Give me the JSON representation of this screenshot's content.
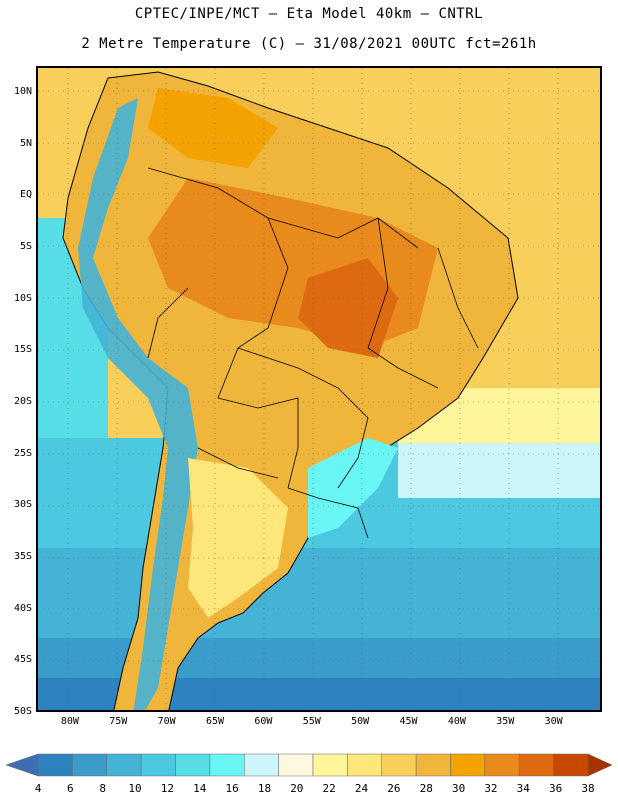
{
  "header": {
    "line1": "CPTEC/INPE/MCT –  Eta Model 40km – CNTRL",
    "line2": "2 Metre Temperature (C) – 31/08/2021 00UTC fct=261h"
  },
  "map": {
    "lat_labels": [
      "10N",
      "5N",
      "EQ",
      "5S",
      "10S",
      "15S",
      "20S",
      "25S",
      "30S",
      "35S",
      "40S",
      "45S",
      "50S"
    ],
    "lat_values": [
      10,
      5,
      0,
      -5,
      -10,
      -15,
      -20,
      -25,
      -30,
      -35,
      -40,
      -45,
      -50
    ],
    "lon_labels": [
      "80W",
      "75W",
      "70W",
      "65W",
      "60W",
      "55W",
      "50W",
      "45W",
      "40W",
      "35W",
      "30W"
    ],
    "lon_values": [
      -80,
      -75,
      -70,
      -65,
      -60,
      -55,
      -50,
      -45,
      -40,
      -35,
      -30
    ],
    "lon_range": [
      -83.5,
      -25
    ],
    "lat_range": [
      -50,
      12.5
    ]
  },
  "colorbar": {
    "labels": [
      "4",
      "6",
      "8",
      "10",
      "12",
      "14",
      "16",
      "18",
      "20",
      "22",
      "24",
      "26",
      "28",
      "30",
      "32",
      "34",
      "36",
      "38"
    ],
    "colors": [
      "#3d6eb4",
      "#2f82c0",
      "#3a9ccb",
      "#44b3d6",
      "#4cc9e0",
      "#56dde6",
      "#6af5f5",
      "#cdf6fb",
      "#fff8e0",
      "#fff59a",
      "#fde67a",
      "#f7cf5a",
      "#f0b63c",
      "#f3a200",
      "#e88a1c",
      "#dd6a10",
      "#c84800",
      "#a83300"
    ]
  }
}
